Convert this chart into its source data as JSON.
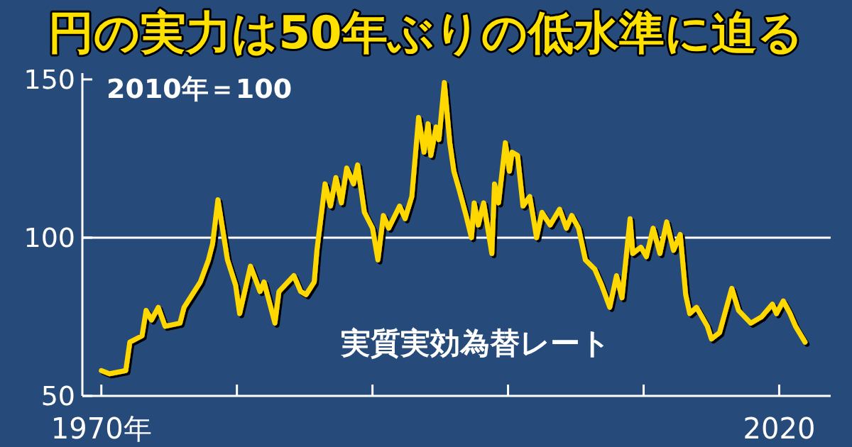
{
  "chart_data": {
    "type": "line",
    "title": "円の実力は50年ぶりの低水準に迫る",
    "annotations": [
      "2010年＝100"
    ],
    "x": [
      1970.0,
      1970.6,
      1971.8,
      1972.1,
      1973.0,
      1973.3,
      1973.7,
      1974.2,
      1974.7,
      1975.8,
      1976.1,
      1976.7,
      1977.3,
      1977.9,
      1978.2,
      1978.6,
      1979.3,
      1979.9,
      1980.2,
      1981.0,
      1981.7,
      1982.0,
      1982.8,
      1983.1,
      1984.2,
      1984.7,
      1985.1,
      1985.7,
      1985.9,
      1986.5,
      1986.9,
      1987.3,
      1987.7,
      1988.1,
      1988.6,
      1988.9,
      1989.4,
      1990.0,
      1990.4,
      1990.8,
      1991.2,
      1992.0,
      1992.4,
      1992.9,
      1993.4,
      1993.8,
      1994.1,
      1994.3,
      1994.7,
      1994.9,
      1995.3,
      1995.7,
      1996.0,
      1996.4,
      1996.9,
      1997.3,
      1997.5,
      1997.8,
      1998.2,
      1998.8,
      1999.0,
      1999.3,
      1999.8,
      2000.1,
      2000.3,
      2000.7,
      2001.1,
      2001.6,
      2002.1,
      2002.5,
      2003.1,
      2003.8,
      2004.3,
      2004.7,
      2005.2,
      2005.7,
      2006.4,
      2006.9,
      2007.5,
      2008.0,
      2008.4,
      2009.0,
      2009.2,
      2009.8,
      2010.2,
      2010.7,
      2011.2,
      2011.7,
      2012.2,
      2012.7,
      2013.1,
      2013.4,
      2013.9,
      2014.3,
      2014.7,
      2015.0,
      2015.6,
      2016.5,
      2017.0,
      2017.9,
      2018.7,
      2019.5,
      2019.8,
      2020.3,
      2020.8,
      2021.2,
      2021.9
    ],
    "series": [
      {
        "name": "実質実効為替レート",
        "color": "#ffd800",
        "values": [
          58,
          57,
          58,
          67,
          69,
          77,
          74,
          78,
          72,
          73,
          78,
          82,
          86,
          93,
          98,
          112,
          93,
          85,
          76,
          91,
          83,
          86,
          73,
          83,
          88,
          83,
          82,
          86,
          96,
          117,
          110,
          119,
          111,
          122,
          117,
          123,
          108,
          103,
          93,
          107,
          103,
          110,
          106,
          113,
          138,
          127,
          136,
          126,
          135,
          131,
          149,
          130,
          121,
          115,
          107,
          100,
          111,
          104,
          111,
          95,
          117,
          111,
          130,
          121,
          127,
          126,
          110,
          113,
          100,
          108,
          104,
          109,
          103,
          107,
          103,
          93,
          90,
          85,
          78,
          88,
          81,
          106,
          95,
          97,
          94,
          103,
          95,
          105,
          96,
          101,
          82,
          76,
          78,
          75,
          72,
          68,
          70,
          84,
          77,
          73,
          75,
          79,
          76,
          80,
          76,
          72,
          67
        ]
      }
    ],
    "xlim": [
      1968.6,
      2023.8
    ],
    "xticks": [
      {
        "value": 1970,
        "label": "1970年"
      },
      {
        "value": 1980,
        "label": null
      },
      {
        "value": 1990,
        "label": null
      },
      {
        "value": 2000,
        "label": null
      },
      {
        "value": 2010,
        "label": null
      },
      {
        "value": 2020,
        "label": "2020"
      }
    ],
    "ylim": [
      50,
      152
    ],
    "yticks": [
      50,
      100,
      150
    ],
    "ref_lines": [
      {
        "axis": "y",
        "value": 100,
        "color": "#ffffff"
      }
    ],
    "line_style": "solid"
  }
}
